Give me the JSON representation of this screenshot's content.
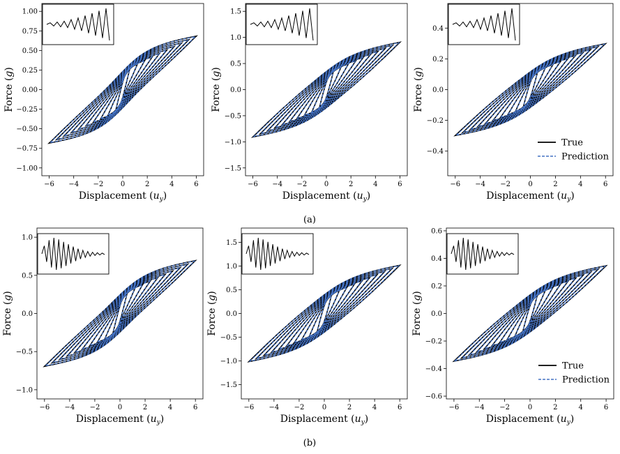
{
  "figure": {
    "captions": [
      "(a)",
      "(b)"
    ]
  },
  "chart_data": [
    {
      "id": "a1",
      "type": "line",
      "row": "a",
      "xlabel": "Displacement (u_y)",
      "ylabel": "Force (g)",
      "xlim": [
        -6.6,
        6.6
      ],
      "ylim": [
        -1.1,
        1.1
      ],
      "xticks": [
        -6,
        -4,
        -2,
        0,
        2,
        4,
        6
      ],
      "yticks": [
        -1.0,
        -0.75,
        -0.5,
        -0.25,
        0.0,
        0.25,
        0.5,
        0.75,
        1.0
      ],
      "ytick_labels": [
        "−1.00",
        "−0.75",
        "−0.50",
        "−0.25",
        "0.00",
        "0.25",
        "0.50",
        "0.75",
        "1.00"
      ],
      "xtick_labels": [
        "−6",
        "−4",
        "−2",
        "0",
        "2",
        "4",
        "6"
      ],
      "peak_force": 1.0,
      "pinch": 0.85,
      "amplitudes": [
        0.6,
        1.2,
        1.8,
        2.4,
        3.0,
        3.6,
        4.2,
        4.8,
        5.4,
        6.0
      ],
      "inset": "increasing",
      "series": [
        {
          "name": "True",
          "color": "#000000",
          "style": "solid"
        },
        {
          "name": "Prediction",
          "color": "#4472c4",
          "style": "dashed"
        }
      ],
      "legend": null
    },
    {
      "id": "a2",
      "type": "line",
      "row": "a",
      "xlabel": "Displacement (u_y)",
      "ylabel": "Force (g)",
      "xlim": [
        -6.6,
        6.6
      ],
      "ylim": [
        -1.65,
        1.65
      ],
      "xticks": [
        -6,
        -4,
        -2,
        0,
        2,
        4,
        6
      ],
      "yticks": [
        -1.5,
        -1.0,
        -0.5,
        0.0,
        0.5,
        1.0,
        1.5
      ],
      "ytick_labels": [
        "−1.5",
        "−1.0",
        "−0.5",
        "0.0",
        "0.5",
        "1.0",
        "1.5"
      ],
      "xtick_labels": [
        "−6",
        "−4",
        "−2",
        "0",
        "2",
        "4",
        "6"
      ],
      "peak_force": 1.5,
      "pinch": 0.35,
      "amplitudes": [
        0.6,
        1.2,
        1.8,
        2.4,
        3.0,
        3.6,
        4.2,
        4.8,
        5.4,
        6.0
      ],
      "inset": "increasing",
      "series": [
        {
          "name": "True",
          "color": "#000000",
          "style": "solid"
        },
        {
          "name": "Prediction",
          "color": "#4472c4",
          "style": "dashed"
        }
      ],
      "legend": null
    },
    {
      "id": "a3",
      "type": "line",
      "row": "a",
      "xlabel": "Displacement (u_y)",
      "ylabel": "Force (g)",
      "xlim": [
        -6.6,
        6.6
      ],
      "ylim": [
        -0.56,
        0.56
      ],
      "xticks": [
        -6,
        -4,
        -2,
        0,
        2,
        4,
        6
      ],
      "yticks": [
        -0.4,
        -0.2,
        0.0,
        0.2,
        0.4
      ],
      "ytick_labels": [
        "−0.4",
        "−0.2",
        "0.0",
        "0.2",
        "0.4"
      ],
      "xtick_labels": [
        "−6",
        "−4",
        "−2",
        "0",
        "2",
        "4",
        "6"
      ],
      "peak_force": 0.5,
      "pinch": 0.3,
      "amplitudes": [
        0.6,
        1.2,
        1.8,
        2.4,
        3.0,
        3.6,
        4.2,
        4.8,
        5.4,
        6.0
      ],
      "inset": "increasing",
      "series": [
        {
          "name": "True",
          "color": "#000000",
          "style": "solid"
        },
        {
          "name": "Prediction",
          "color": "#4472c4",
          "style": "dashed"
        }
      ],
      "legend": {
        "entries": [
          "True",
          "Prediction"
        ],
        "loc": "lower right"
      }
    },
    {
      "id": "b1",
      "type": "line",
      "row": "b",
      "xlabel": "Displacement (u_y)",
      "ylabel": "Force (g)",
      "xlim": [
        -6.6,
        6.6
      ],
      "ylim": [
        -1.12,
        1.12
      ],
      "xticks": [
        -6,
        -4,
        -2,
        0,
        2,
        4,
        6
      ],
      "yticks": [
        -1.0,
        -0.5,
        0.0,
        0.5,
        1.0
      ],
      "ytick_labels": [
        "−1.0",
        "−0.5",
        "0.0",
        "0.5",
        "1.0"
      ],
      "xtick_labels": [
        "−6",
        "−4",
        "−2",
        "0",
        "2",
        "4",
        "6"
      ],
      "peak_force": 1.05,
      "pinch": 0.7,
      "amplitudes": [
        6.0,
        5.4,
        4.8,
        4.2,
        3.6,
        3.0,
        2.4,
        1.8,
        1.2,
        0.6
      ],
      "inset": "decreasing",
      "series": [
        {
          "name": "True",
          "color": "#000000",
          "style": "solid"
        },
        {
          "name": "Prediction",
          "color": "#4472c4",
          "style": "dashed"
        }
      ],
      "legend": null
    },
    {
      "id": "b2",
      "type": "line",
      "row": "b",
      "xlabel": "Displacement (u_y)",
      "ylabel": "Force (g)",
      "xlim": [
        -6.6,
        6.6
      ],
      "ylim": [
        -1.8,
        1.8
      ],
      "xticks": [
        -6,
        -4,
        -2,
        0,
        2,
        4,
        6
      ],
      "yticks": [
        -1.5,
        -1.0,
        -0.5,
        0.0,
        0.5,
        1.0,
        1.5
      ],
      "ytick_labels": [
        "−1.5",
        "−1.0",
        "−0.5",
        "0.0",
        "0.5",
        "1.0",
        "1.5"
      ],
      "xtick_labels": [
        "−6",
        "−4",
        "−2",
        "0",
        "2",
        "4",
        "6"
      ],
      "peak_force": 1.7,
      "pinch": 0.3,
      "amplitudes": [
        6.0,
        5.4,
        4.8,
        4.2,
        3.6,
        3.0,
        2.4,
        1.8,
        1.2,
        0.6
      ],
      "inset": "decreasing",
      "series": [
        {
          "name": "True",
          "color": "#000000",
          "style": "solid"
        },
        {
          "name": "Prediction",
          "color": "#4472c4",
          "style": "dashed"
        }
      ],
      "legend": null
    },
    {
      "id": "b3",
      "type": "line",
      "row": "b",
      "xlabel": "Displacement (u_y)",
      "ylabel": "Force (g)",
      "xlim": [
        -6.6,
        6.6
      ],
      "ylim": [
        -0.62,
        0.62
      ],
      "xticks": [
        -6,
        -4,
        -2,
        0,
        2,
        4,
        6
      ],
      "yticks": [
        -0.6,
        -0.4,
        -0.2,
        0.0,
        0.2,
        0.4,
        0.6
      ],
      "ytick_labels": [
        "−0.6",
        "−0.4",
        "−0.2",
        "0.0",
        "0.2",
        "0.4",
        "0.6"
      ],
      "xtick_labels": [
        "−6",
        "−4",
        "−2",
        "0",
        "2",
        "4",
        "6"
      ],
      "peak_force": 0.58,
      "pinch": 0.3,
      "amplitudes": [
        6.0,
        5.4,
        4.8,
        4.2,
        3.6,
        3.0,
        2.4,
        1.8,
        1.2,
        0.6
      ],
      "inset": "decreasing",
      "series": [
        {
          "name": "True",
          "color": "#000000",
          "style": "solid"
        },
        {
          "name": "Prediction",
          "color": "#4472c4",
          "style": "dashed"
        }
      ],
      "legend": {
        "entries": [
          "True",
          "Prediction"
        ],
        "loc": "lower right"
      }
    }
  ]
}
